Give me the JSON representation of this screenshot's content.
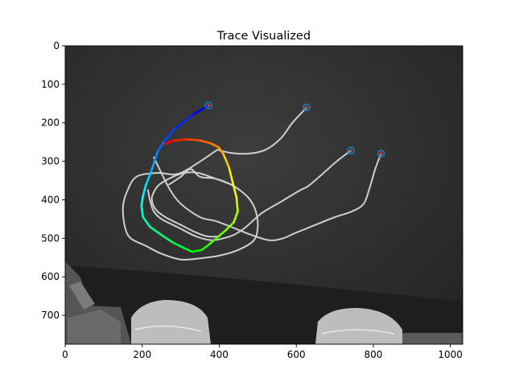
{
  "chart_data": {
    "type": "image",
    "title": "Trace Visualized",
    "xlabel": "",
    "ylabel": "",
    "xlim": [
      0,
      1032
    ],
    "ylim": [
      775,
      0
    ],
    "x_ticks": [
      0,
      200,
      400,
      600,
      800,
      1000
    ],
    "y_ticks": [
      0,
      100,
      200,
      300,
      400,
      500,
      600,
      700
    ],
    "y_inverted": true,
    "grid": false,
    "legend": "none",
    "background": "grayscale photograph of white cables on a dark cloth",
    "endpoint_markers": [
      {
        "x": 372,
        "y": 155
      },
      {
        "x": 627,
        "y": 160
      },
      {
        "x": 742,
        "y": 272
      },
      {
        "x": 820,
        "y": 280
      }
    ],
    "marker_color": "#1f77b4",
    "traced_path": {
      "colormap": "hsv",
      "points": [
        [
          372,
          155
        ],
        [
          330,
          180
        ],
        [
          285,
          215
        ],
        [
          255,
          250
        ],
        [
          240,
          275
        ],
        [
          232,
          300
        ],
        [
          222,
          330
        ],
        [
          210,
          360
        ],
        [
          202,
          390
        ],
        [
          198,
          415
        ],
        [
          202,
          445
        ],
        [
          220,
          470
        ],
        [
          248,
          490
        ],
        [
          278,
          510
        ],
        [
          308,
          525
        ],
        [
          330,
          535
        ],
        [
          355,
          530
        ],
        [
          375,
          515
        ],
        [
          398,
          495
        ],
        [
          418,
          478
        ],
        [
          438,
          458
        ],
        [
          448,
          430
        ],
        [
          445,
          395
        ],
        [
          435,
          355
        ],
        [
          425,
          315
        ],
        [
          410,
          280
        ],
        [
          398,
          263
        ],
        [
          375,
          252
        ],
        [
          345,
          245
        ],
        [
          310,
          243
        ],
        [
          280,
          247
        ],
        [
          258,
          255
        ]
      ]
    },
    "cables": [
      {
        "points": [
          [
            627,
            160
          ],
          [
            590,
            200
          ],
          [
            560,
            240
          ],
          [
            520,
            270
          ],
          [
            475,
            280
          ],
          [
            430,
            278
          ],
          [
            395,
            270
          ]
        ]
      },
      {
        "points": [
          [
            742,
            272
          ],
          [
            705,
            300
          ],
          [
            660,
            340
          ],
          [
            630,
            365
          ],
          [
            610,
            375
          ],
          [
            560,
            405
          ],
          [
            510,
            435
          ],
          [
            470,
            470
          ],
          [
            440,
            490
          ],
          [
            410,
            500
          ],
          [
            380,
            505
          ],
          [
            340,
            495
          ],
          [
            290,
            470
          ],
          [
            250,
            450
          ],
          [
            230,
            430
          ],
          [
            220,
            400
          ],
          [
            215,
            375
          ]
        ]
      },
      {
        "points": [
          [
            820,
            280
          ],
          [
            805,
            320
          ],
          [
            790,
            370
          ],
          [
            775,
            410
          ],
          [
            745,
            430
          ],
          [
            700,
            445
          ],
          [
            650,
            465
          ],
          [
            600,
            485
          ],
          [
            565,
            500
          ],
          [
            530,
            505
          ],
          [
            480,
            490
          ],
          [
            430,
            470
          ],
          [
            390,
            455
          ],
          [
            350,
            445
          ],
          [
            300,
            410
          ],
          [
            270,
            370
          ],
          [
            240,
            310
          ],
          [
            230,
            290
          ]
        ]
      },
      {
        "points": [
          [
            395,
            270
          ],
          [
            300,
            330
          ],
          [
            240,
            330
          ],
          [
            185,
            340
          ],
          [
            160,
            380
          ],
          [
            150,
            420
          ],
          [
            155,
            470
          ],
          [
            170,
            500
          ],
          [
            210,
            520
          ],
          [
            250,
            540
          ],
          [
            300,
            555
          ],
          [
            350,
            552
          ],
          [
            400,
            545
          ],
          [
            450,
            530
          ],
          [
            490,
            505
          ],
          [
            500,
            470
          ],
          [
            495,
            430
          ],
          [
            480,
            400
          ],
          [
            460,
            380
          ],
          [
            430,
            360
          ],
          [
            390,
            345
          ],
          [
            350,
            340
          ],
          [
            325,
            320
          ],
          [
            300,
            340
          ],
          [
            270,
            360
          ]
        ]
      },
      {
        "points": [
          [
            430,
            360
          ],
          [
            390,
            345
          ],
          [
            345,
            330
          ],
          [
            310,
            330
          ],
          [
            280,
            340
          ],
          [
            245,
            360
          ],
          [
            230,
            380
          ],
          [
            225,
            400
          ],
          [
            235,
            425
          ],
          [
            260,
            445
          ],
          [
            300,
            465
          ],
          [
            340,
            485
          ],
          [
            370,
            495
          ],
          [
            400,
            495
          ]
        ]
      }
    ]
  }
}
